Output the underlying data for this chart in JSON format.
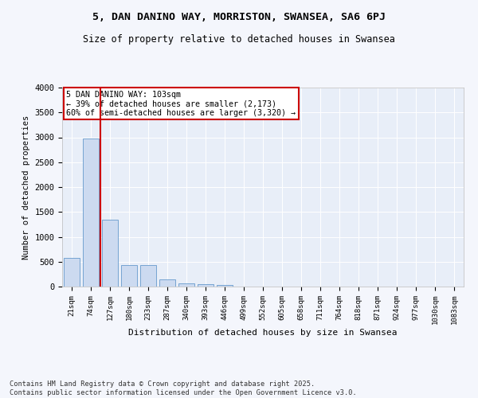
{
  "title": "5, DAN DANINO WAY, MORRISTON, SWANSEA, SA6 6PJ",
  "subtitle": "Size of property relative to detached houses in Swansea",
  "xlabel": "Distribution of detached houses by size in Swansea",
  "ylabel": "Number of detached properties",
  "bar_color": "#ccdaf0",
  "bar_edge_color": "#6699cc",
  "background_color": "#e8eef8",
  "grid_color": "#ffffff",
  "categories": [
    "21sqm",
    "74sqm",
    "127sqm",
    "180sqm",
    "233sqm",
    "287sqm",
    "340sqm",
    "393sqm",
    "446sqm",
    "499sqm",
    "552sqm",
    "605sqm",
    "658sqm",
    "711sqm",
    "764sqm",
    "818sqm",
    "871sqm",
    "924sqm",
    "977sqm",
    "1030sqm",
    "1083sqm"
  ],
  "values": [
    580,
    2970,
    1340,
    430,
    430,
    150,
    70,
    55,
    35,
    0,
    0,
    0,
    0,
    0,
    0,
    0,
    0,
    0,
    0,
    0,
    0
  ],
  "ylim": [
    0,
    4000
  ],
  "yticks": [
    0,
    500,
    1000,
    1500,
    2000,
    2500,
    3000,
    3500,
    4000
  ],
  "red_line_x": 1.5,
  "annotation_text": "5 DAN DANINO WAY: 103sqm\n← 39% of detached houses are smaller (2,173)\n60% of semi-detached houses are larger (3,320) →",
  "annotation_box_color": "#ffffff",
  "annotation_edge_color": "#cc0000",
  "red_line_color": "#cc0000",
  "fig_bg": "#f4f6fc",
  "footnote": "Contains HM Land Registry data © Crown copyright and database right 2025.\nContains public sector information licensed under the Open Government Licence v3.0."
}
